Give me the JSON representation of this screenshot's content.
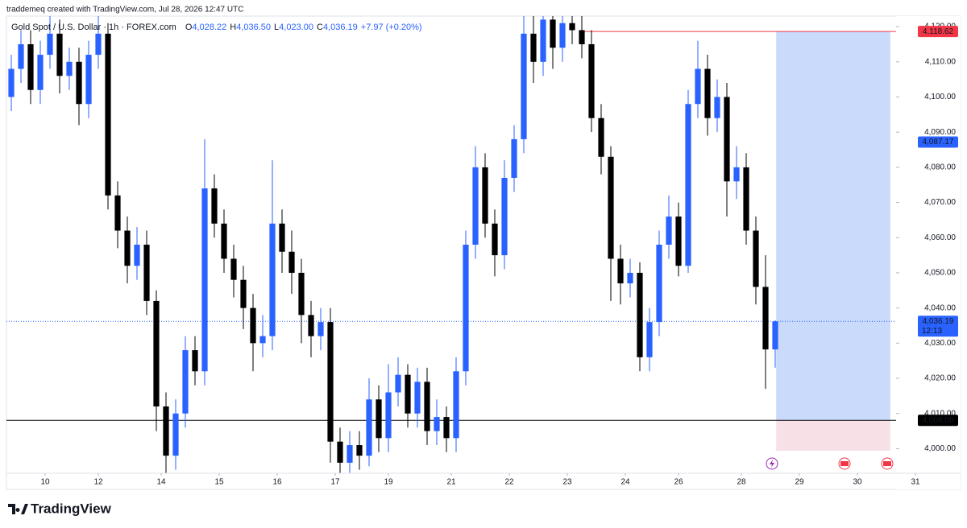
{
  "chart_data": {
    "type": "candlestick",
    "header": "traddemeq created with TradingView.com, Jul 28, 2026 12:47 UTC",
    "symbol": "Gold Spot / U.S. Dollar · 1h · FOREX.com",
    "ohlc_legend": [
      {
        "key": "O",
        "text": "4,028.22"
      },
      {
        "key": "H",
        "text": "4,036.50"
      },
      {
        "key": "L",
        "text": "4,023.00"
      },
      {
        "key": "C",
        "text": "4,036.19"
      }
    ],
    "change": "+7.97 (+0.20%)",
    "up_color": "#2962ff",
    "down_color": "#000000",
    "opens": [
      4100,
      4108,
      4115,
      4102,
      4112,
      4118,
      4106,
      4110,
      4098,
      4112,
      4118,
      4072,
      4062,
      4052,
      4058,
      4042,
      4012,
      3998,
      4010,
      4028,
      4022,
      4074,
      4064,
      4054,
      4048,
      4040,
      4030,
      4032,
      4064,
      4056,
      4050,
      4038,
      4032,
      4036,
      4002,
      3996,
      4001,
      3998,
      4014,
      4003,
      4016,
      4021,
      4010,
      4019,
      4005,
      4009,
      4003,
      4022,
      4058,
      4080,
      4064,
      4055,
      4077,
      4088,
      4118,
      4110,
      4122,
      4114,
      4121,
      4119,
      4115,
      4094,
      4083,
      4054,
      4047,
      4050,
      4026,
      4036,
      4058,
      4066,
      4052,
      4098,
      4108,
      4094,
      4100,
      4076,
      4080,
      4062,
      4046,
      4028.22
    ],
    "highs": [
      4112,
      4119,
      4119,
      4116,
      4123,
      4122,
      4114,
      4114,
      4116,
      4124,
      4121,
      4076,
      4066,
      4063,
      4062,
      4045,
      4016,
      4014,
      4032,
      4032,
      4088,
      4078,
      4068,
      4058,
      4052,
      4044,
      4038,
      4082,
      4068,
      4062,
      4054,
      4042,
      4040,
      4040,
      4006,
      4005,
      4005,
      4020,
      4018,
      4024,
      4026,
      4024,
      4023,
      4023,
      4014,
      4012,
      4026,
      4062,
      4086,
      4084,
      4068,
      4082,
      4092,
      4124,
      4124,
      4125,
      4125,
      4125,
      4125,
      4125,
      4119,
      4098,
      4086,
      4058,
      4054,
      4053,
      4040,
      4062,
      4072,
      4070,
      4102,
      4116,
      4112,
      4105,
      4104,
      4086,
      4084,
      4066,
      4055,
      4036.5
    ],
    "lows": [
      4096,
      4104,
      4098,
      4098,
      4108,
      4101,
      4102,
      4092,
      4094,
      4108,
      4068,
      4057,
      4047,
      4048,
      4038,
      4005,
      3993,
      3994,
      4006,
      4018,
      4018,
      4060,
      4050,
      4043,
      4034,
      4022,
      4026,
      4028,
      4050,
      4044,
      4030,
      4026,
      4028,
      3996,
      3993,
      3993,
      3994,
      3995,
      3999,
      3999,
      4012,
      4006,
      4006,
      4001,
      4001,
      3999,
      3999,
      4018,
      4054,
      4060,
      4049,
      4051,
      4073,
      4084,
      4104,
      4106,
      4108,
      4110,
      4115,
      4111,
      4090,
      4078,
      4042,
      4041,
      4043,
      4022,
      4022,
      4032,
      4054,
      4049,
      4050,
      4094,
      4089,
      4090,
      4066,
      4071,
      4058,
      4041,
      4017,
      4023
    ],
    "closes": [
      4108,
      4115,
      4102,
      4112,
      4118,
      4106,
      4110,
      4098,
      4112,
      4118,
      4072,
      4062,
      4052,
      4058,
      4042,
      4012,
      3998,
      4010,
      4028,
      4022,
      4074,
      4064,
      4054,
      4048,
      4040,
      4030,
      4032,
      4064,
      4056,
      4050,
      4038,
      4032,
      4036,
      4002,
      3996,
      4001,
      3998,
      4014,
      4003,
      4016,
      4021,
      4010,
      4019,
      4005,
      4009,
      4003,
      4022,
      4058,
      4080,
      4064,
      4055,
      4077,
      4088,
      4118,
      4110,
      4122,
      4114,
      4121,
      4119,
      4115,
      4094,
      4083,
      4054,
      4047,
      4050,
      4026,
      4036,
      4058,
      4066,
      4052,
      4098,
      4108,
      4094,
      4100,
      4076,
      4080,
      4062,
      4046,
      4028.22,
      4036.19
    ],
    "xlim": [
      0,
      94
    ],
    "xticks": [
      {
        "value": 4,
        "label": "10"
      },
      {
        "value": 9.5,
        "label": "12"
      },
      {
        "value": 16,
        "label": "14"
      },
      {
        "value": 22,
        "label": "15"
      },
      {
        "value": 28,
        "label": "16"
      },
      {
        "value": 34,
        "label": "17"
      },
      {
        "value": 39.5,
        "label": "19"
      },
      {
        "value": 46,
        "label": "21"
      },
      {
        "value": 52,
        "label": "22"
      },
      {
        "value": 58,
        "label": "23"
      },
      {
        "value": 64,
        "label": "24"
      },
      {
        "value": 69.5,
        "label": "26"
      },
      {
        "value": 76,
        "label": "28"
      },
      {
        "value": 82,
        "label": "29"
      },
      {
        "value": 88,
        "label": "30"
      },
      {
        "value": 94,
        "label": "31"
      }
    ],
    "ylim": [
      3993,
      4123
    ],
    "yticks": [
      {
        "value": 4000,
        "label": "4,000.00"
      },
      {
        "value": 4010,
        "label": "4,010.00"
      },
      {
        "value": 4020,
        "label": "4,020.00"
      },
      {
        "value": 4030,
        "label": "4,030.00"
      },
      {
        "value": 4040,
        "label": "4,040.00"
      },
      {
        "value": 4050,
        "label": "4,050.00"
      },
      {
        "value": 4060,
        "label": "4,060.00"
      },
      {
        "value": 4070,
        "label": "4,070.00"
      },
      {
        "value": 4080,
        "label": "4,080.00"
      },
      {
        "value": 4090,
        "label": "4,090.00"
      },
      {
        "value": 4100,
        "label": "4,100.00"
      },
      {
        "value": 4110,
        "label": "4,110.00"
      },
      {
        "value": 4120,
        "label": "4,120.00"
      }
    ],
    "grid": false,
    "position": {
      "start": 79.6,
      "end": 91.4,
      "entry": 4008.06,
      "target": 4118.62,
      "stop": 3999.4,
      "profit_color": "#c9dafb",
      "loss_color": "#f7e1e6"
    },
    "target_line": {
      "start": 59.75,
      "value": 4118.62,
      "color": "#f23645"
    },
    "entry_line": {
      "value": 4008.06,
      "color": "#000000"
    },
    "last_line": {
      "value": 4036.19,
      "color": "#2962ff"
    },
    "price_labels": [
      {
        "value": 4118.62,
        "label": "4,118.62",
        "color": "#f23645"
      },
      {
        "value": 4087.17,
        "label": "4,087.17",
        "color": "#2962ff"
      },
      {
        "value": 4036.19,
        "label": "4,036.19",
        "color": "#2962ff"
      },
      {
        "value": 4008.06,
        "label": "4,008.06",
        "color": "#000000"
      }
    ],
    "countdown": "12:13",
    "brand": "TradingView"
  }
}
